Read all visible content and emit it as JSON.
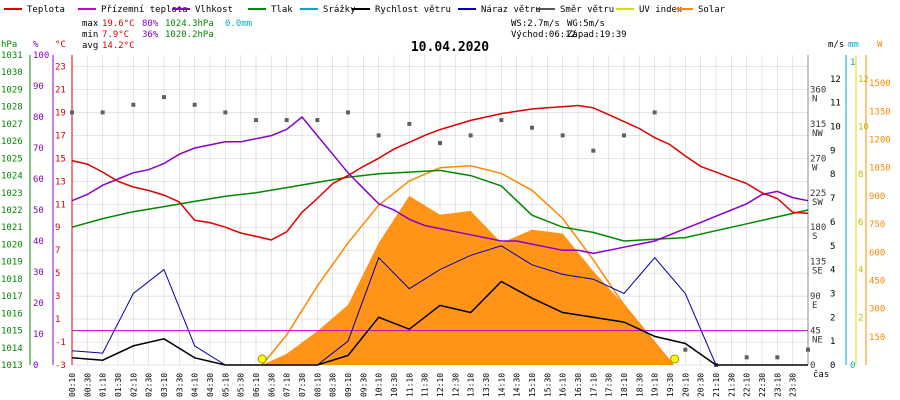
{
  "legend": [
    {
      "label": "Teplota",
      "color": "#dd0000"
    },
    {
      "label": "Přízemní teplota",
      "color": "#cc00cc"
    },
    {
      "label": "Vlhkost",
      "color": "#8800cc"
    },
    {
      "label": "Tlak",
      "color": "#008800"
    },
    {
      "label": "Srážky",
      "color": "#00aacc"
    },
    {
      "label": "Rychlost větru",
      "color": "#000000"
    },
    {
      "label": "Náraz větru",
      "color": "#0000aa"
    },
    {
      "label": "Směr větru",
      "color": "#555555"
    },
    {
      "label": "UV index",
      "color": "#dddd00"
    },
    {
      "label": "Solar",
      "color": "#ff8800"
    }
  ],
  "stats": {
    "max_label": "max",
    "max_temp": "19.6°C",
    "max_hum": "80%",
    "max_press": "1024.3hPa",
    "max_rain": "0.0mm",
    "min_label": "min",
    "min_temp": "7.9°C",
    "min_hum": "36%",
    "min_press": "1020.2hPa",
    "avg_label": "avg",
    "avg_temp": "14.2°C"
  },
  "wind_info": {
    "ws": "WS:2.7m/s",
    "wg": "WG:5m/s",
    "sunrise": "Východ:06:12",
    "sunset": "Západ:19:39"
  },
  "colors": {
    "temp": "#dd0000",
    "groundtemp": "#cc00cc",
    "hum": "#8800cc",
    "press": "#008800",
    "rain": "#00aacc",
    "wind": "#000000",
    "gust": "#0000aa",
    "dir": "#606060",
    "uv": "#dddd00",
    "solar": "#ff8800",
    "grid": "#cccccc"
  },
  "chart_data": {
    "type": "line",
    "title": "10.04.2020",
    "x_unit": "čas",
    "x_ticks": [
      "00:10",
      "00:30",
      "01:10",
      "01:30",
      "02:10",
      "02:30",
      "03:10",
      "03:30",
      "04:10",
      "04:30",
      "05:10",
      "05:30",
      "06:10",
      "06:30",
      "07:10",
      "07:30",
      "08:10",
      "08:30",
      "09:10",
      "09:30",
      "10:10",
      "10:30",
      "11:10",
      "11:30",
      "12:10",
      "12:30",
      "13:10",
      "13:30",
      "14:10",
      "14:30",
      "15:10",
      "15:30",
      "16:10",
      "16:30",
      "17:10",
      "17:30",
      "18:10",
      "18:30",
      "19:10",
      "19:30",
      "20:10",
      "20:30",
      "21:10",
      "21:30",
      "22:10",
      "22:30",
      "23:10",
      "23:30"
    ],
    "axes": {
      "pressure": {
        "label": "hPa",
        "ticks": [
          "1031",
          "1030",
          "1029",
          "1028",
          "1027",
          "1026",
          "1025",
          "1024",
          "1023",
          "1022",
          "1021",
          "1020",
          "1019",
          "1018",
          "1017",
          "1016",
          "1015",
          "1014",
          "1013"
        ],
        "ylim": [
          1013,
          1031
        ]
      },
      "humidity": {
        "label": "%",
        "ticks": [
          "100",
          "90",
          "80",
          "70",
          "60",
          "50",
          "40",
          "30",
          "20",
          "10",
          "0"
        ],
        "ylim": [
          0,
          100
        ]
      },
      "temperature": {
        "label": "°C",
        "ticks": [
          "23",
          "21",
          "19",
          "17",
          "15",
          "13",
          "11",
          "9",
          "7",
          "5",
          "3",
          "1",
          "-1",
          "-3"
        ],
        "ylim": [
          -3,
          24
        ]
      },
      "wind": {
        "label": "m/s",
        "ticks": [
          "12",
          "11",
          "10",
          "9",
          "8",
          "7",
          "6",
          "5",
          "4",
          "3",
          "2",
          "1",
          "0"
        ],
        "ylim": [
          0,
          13
        ]
      },
      "rain": {
        "label": "mm",
        "ticks": [
          "1",
          "0"
        ],
        "ylim": [
          0,
          1
        ]
      },
      "direction": {
        "ticks": [
          "360 N",
          "315 NW",
          "270 W",
          "225 SW",
          "180 S",
          "135 SE",
          "90 E",
          "45 NE",
          "0"
        ],
        "ylim": [
          0,
          405
        ]
      },
      "solar": {
        "label": "W",
        "ticks": [
          "1500",
          "1350",
          "1200",
          "1050",
          "900",
          "750",
          "600",
          "450",
          "300",
          "150"
        ],
        "ylim": [
          0,
          1650
        ]
      },
      "uv": {
        "ticks": [
          "12",
          "10",
          "8",
          "6",
          "4",
          "2"
        ],
        "ylim": [
          0,
          13
        ]
      }
    },
    "series": [
      {
        "name": "Teplota",
        "unit": "°C",
        "x": [
          0,
          0.5,
          1,
          1.5,
          2,
          2.5,
          3,
          3.5,
          4,
          4.5,
          5,
          5.5,
          6,
          6.5,
          7,
          7.5,
          8,
          8.5,
          9,
          9.5,
          10,
          10.5,
          11,
          11.5,
          12,
          12.5,
          13,
          13.5,
          14,
          14.5,
          15,
          15.5,
          16,
          16.5,
          17,
          17.5,
          18,
          18.5,
          19,
          19.5,
          20,
          20.5,
          21,
          21.5,
          22,
          22.5,
          23,
          23.5,
          24
        ],
        "values": [
          14.8,
          14.5,
          13.8,
          13.0,
          12.5,
          12.2,
          11.8,
          11.2,
          9.6,
          9.4,
          9.0,
          8.5,
          8.2,
          7.9,
          8.6,
          10.3,
          11.5,
          12.8,
          13.5,
          14.3,
          15.0,
          15.8,
          16.4,
          17.0,
          17.5,
          17.9,
          18.3,
          18.6,
          18.9,
          19.1,
          19.3,
          19.4,
          19.5,
          19.6,
          19.4,
          18.8,
          18.2,
          17.6,
          16.8,
          16.2,
          15.2,
          14.3,
          13.8,
          13.3,
          12.8,
          12.0,
          11.5,
          10.3,
          10.2
        ]
      },
      {
        "name": "Vlhkost",
        "unit": "%",
        "x": [
          0,
          0.5,
          1,
          1.5,
          2,
          2.5,
          3,
          3.5,
          4,
          4.5,
          5,
          5.5,
          6,
          6.5,
          7,
          7.5,
          8,
          8.5,
          9,
          9.5,
          10,
          10.5,
          11,
          11.5,
          12,
          12.5,
          13,
          13.5,
          14,
          14.5,
          15,
          15.5,
          16,
          16.5,
          17,
          17.5,
          18,
          18.5,
          19,
          19.5,
          20,
          20.5,
          21,
          21.5,
          22,
          22.5,
          23,
          23.5,
          24
        ],
        "values": [
          53,
          55,
          58,
          60,
          62,
          63,
          65,
          68,
          70,
          71,
          72,
          72,
          73,
          74,
          76,
          80,
          74,
          68,
          62,
          57,
          52,
          50,
          47,
          45,
          44,
          43,
          42,
          41,
          40,
          40,
          39,
          38,
          37,
          37,
          36,
          37,
          38,
          39,
          40,
          42,
          44,
          46,
          48,
          50,
          52,
          55,
          56,
          54,
          53
        ]
      },
      {
        "name": "Tlak",
        "unit": "hPa",
        "x": [
          0,
          1,
          2,
          3,
          4,
          5,
          6,
          7,
          8,
          9,
          10,
          11,
          12,
          13,
          14,
          15,
          16,
          17,
          18,
          19,
          20,
          21,
          22,
          23,
          24
        ],
        "values": [
          1021.0,
          1021.5,
          1021.9,
          1022.2,
          1022.5,
          1022.8,
          1023.0,
          1023.3,
          1023.6,
          1023.9,
          1024.1,
          1024.2,
          1024.3,
          1024.0,
          1023.4,
          1021.7,
          1021.0,
          1020.7,
          1020.2,
          1020.3,
          1020.4,
          1020.8,
          1021.2,
          1021.6,
          1022.0
        ]
      },
      {
        "name": "Přízemní teplota",
        "unit": "°C",
        "x": [
          0,
          24
        ],
        "values": [
          0,
          0
        ]
      },
      {
        "name": "Rychlost větru",
        "unit": "m/s",
        "x": [
          0,
          1,
          2,
          3,
          4,
          5,
          6,
          7,
          8,
          9,
          10,
          11,
          12,
          13,
          14,
          15,
          16,
          17,
          18,
          19,
          20,
          21,
          22,
          23,
          24
        ],
        "values": [
          0.3,
          0.2,
          0.8,
          1.1,
          0.3,
          0.0,
          0.0,
          0.0,
          0.0,
          0.4,
          2.0,
          1.5,
          2.5,
          2.2,
          3.5,
          2.8,
          2.2,
          2.0,
          1.8,
          1.2,
          0.9,
          0.0,
          0.0,
          0.0,
          0.0
        ]
      },
      {
        "name": "Náraz větru",
        "unit": "m/s",
        "x": [
          0,
          1,
          2,
          3,
          4,
          5,
          6,
          7,
          8,
          9,
          10,
          11,
          12,
          13,
          14,
          15,
          16,
          17,
          18,
          19,
          20,
          21,
          22,
          23,
          24
        ],
        "values": [
          0.6,
          0.5,
          3.0,
          4.0,
          0.8,
          0.0,
          0.0,
          0.0,
          0.0,
          1.0,
          4.5,
          3.2,
          4.0,
          4.6,
          5.0,
          4.2,
          3.8,
          3.6,
          3.0,
          4.5,
          3.0,
          0.0,
          0.0,
          0.0,
          0.0
        ]
      },
      {
        "name": "Solar",
        "unit": "W/m²",
        "x": [
          6.2,
          7,
          8,
          9,
          10,
          11,
          12,
          13,
          14,
          15,
          16,
          17,
          18,
          19,
          19.6
        ],
        "values": [
          0,
          60,
          180,
          320,
          650,
          900,
          800,
          820,
          650,
          720,
          700,
          500,
          320,
          120,
          0
        ]
      },
      {
        "name": "Solar (clear-sky)",
        "unit": "W/m²",
        "x": [
          6.2,
          7,
          8,
          9,
          10,
          11,
          12,
          13,
          14,
          15,
          16,
          17,
          18,
          19,
          19.6
        ],
        "values": [
          0,
          160,
          420,
          650,
          850,
          980,
          1050,
          1060,
          1020,
          930,
          780,
          560,
          320,
          120,
          0
        ]
      },
      {
        "name": "Směr větru",
        "unit": "°",
        "x": [
          0,
          1,
          2,
          3,
          4,
          5,
          6,
          7,
          8,
          9,
          10,
          11,
          12,
          13,
          14,
          15,
          16,
          17,
          18,
          19,
          20,
          21,
          22,
          23,
          24
        ],
        "values": [
          330,
          330,
          340,
          350,
          340,
          330,
          320,
          320,
          320,
          330,
          300,
          315,
          290,
          300,
          320,
          310,
          300,
          280,
          300,
          330,
          20,
          0,
          10,
          10,
          20
        ]
      }
    ]
  }
}
